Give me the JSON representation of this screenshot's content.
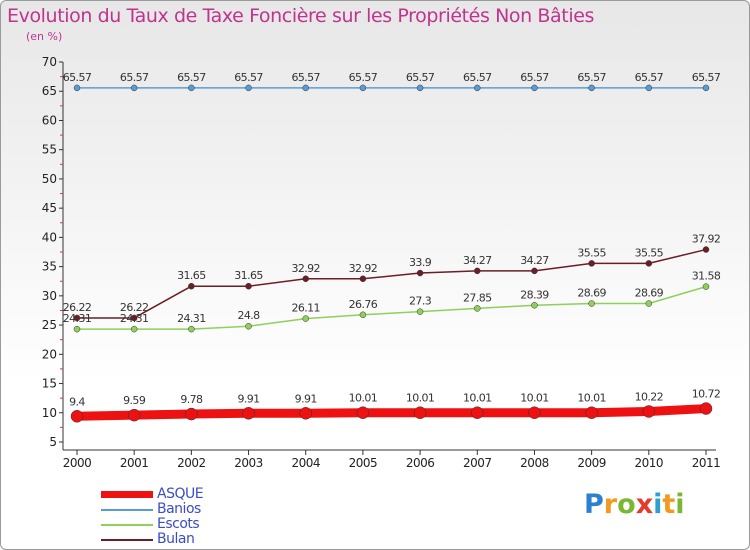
{
  "header": {
    "title": "Evolution du Taux de Taxe Foncière sur les Propriétés Non Bâties",
    "subtitle": "(en %)"
  },
  "chart_data": {
    "type": "line",
    "title": "Evolution du Taux de Taxe Foncière sur les Propriétés Non Bâties",
    "ylabel": "(en %)",
    "xlabel": "",
    "x": [
      "2000",
      "2001",
      "2002",
      "2003",
      "2004",
      "2005",
      "2006",
      "2007",
      "2008",
      "2009",
      "2010",
      "2011"
    ],
    "ylim": [
      5,
      70
    ],
    "yticks": [
      5,
      10,
      15,
      20,
      25,
      30,
      35,
      40,
      45,
      50,
      55,
      60,
      65,
      70
    ],
    "grid": false,
    "legend_position": "bottom-left",
    "series": [
      {
        "name": "Banios",
        "color": "#5b9bd5",
        "values": [
          65.57,
          65.57,
          65.57,
          65.57,
          65.57,
          65.57,
          65.57,
          65.57,
          65.57,
          65.57,
          65.57,
          65.57
        ],
        "labels": [
          "65.57",
          "65.57",
          "65.57",
          "65.57",
          "65.57",
          "65.57",
          "65.57",
          "65.57",
          "65.57",
          "65.57",
          "65.57",
          "65.57"
        ]
      },
      {
        "name": "Bulan",
        "color": "#6b1e26",
        "values": [
          26.22,
          26.22,
          31.65,
          31.65,
          32.92,
          32.92,
          33.9,
          34.27,
          34.27,
          35.55,
          35.55,
          37.92
        ],
        "labels": [
          "26.22",
          "26.22",
          "31.65",
          "31.65",
          "32.92",
          "32.92",
          "33.9",
          "34.27",
          "34.27",
          "35.55",
          "35.55",
          "37.92"
        ]
      },
      {
        "name": "Escots",
        "color": "#8ed05a",
        "values": [
          24.31,
          24.31,
          24.31,
          24.8,
          26.11,
          26.76,
          27.3,
          27.85,
          28.39,
          28.69,
          28.69,
          31.58
        ],
        "labels": [
          "24.31",
          "24.31",
          "24.31",
          "24.8",
          "26.11",
          "26.76",
          "27.3",
          "27.85",
          "28.39",
          "28.69",
          "28.69",
          "31.58"
        ]
      },
      {
        "name": "ASQUE",
        "color": "#ee1111",
        "values": [
          9.4,
          9.59,
          9.78,
          9.91,
          9.91,
          10.01,
          10.01,
          10.01,
          10.01,
          10.01,
          10.22,
          10.72
        ],
        "labels": [
          "9.4",
          "9.59",
          "9.78",
          "9.91",
          "9.91",
          "10.01",
          "10.01",
          "10.01",
          "10.01",
          "10.01",
          "10.22",
          "10.72"
        ]
      }
    ]
  },
  "legend": {
    "items": [
      {
        "label": "ASQUE",
        "color": "#ee1111"
      },
      {
        "label": "Banios",
        "color": "#5b9bd5"
      },
      {
        "label": "Escots",
        "color": "#8ed05a"
      },
      {
        "label": "Bulan",
        "color": "#6b1e26"
      }
    ]
  },
  "logo": {
    "letters": [
      "P",
      "r",
      "o",
      "x",
      "i",
      "t",
      "i"
    ],
    "colors": [
      "#2f7fd0",
      "#f39a1e",
      "#79b833",
      "#e63a2d",
      "#2f9fd0",
      "#f39a1e",
      "#79b833"
    ]
  }
}
